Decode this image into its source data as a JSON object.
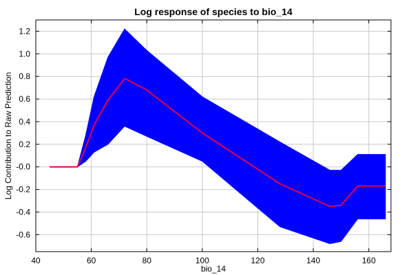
{
  "chart_data": {
    "type": "area",
    "title": "Log response of species to bio_14",
    "xlabel": "bio_14",
    "ylabel": "Log Contribution to Raw Prediction",
    "xlim": [
      40,
      168
    ],
    "ylim": [
      -0.75,
      1.3
    ],
    "xticks": [
      40,
      60,
      80,
      100,
      120,
      140,
      160
    ],
    "yticks": [
      -0.6,
      -0.4,
      -0.2,
      0.0,
      0.2,
      0.4,
      0.6,
      0.8,
      1.0,
      1.2
    ],
    "ytick_labels": [
      "-0.6",
      "-0.4",
      "-0.2",
      "-0.0",
      "0.2",
      "0.4",
      "0.6",
      "0.8",
      "1.0",
      "1.2"
    ],
    "grid": true,
    "band": {
      "name": "",
      "color": "#0000ff",
      "x": [
        45,
        55,
        58,
        61,
        66,
        72,
        80,
        100,
        128,
        146,
        150,
        156,
        166
      ],
      "upper": [
        0.0,
        0.0,
        0.28,
        0.62,
        0.97,
        1.22,
        1.03,
        0.62,
        0.22,
        -0.03,
        -0.03,
        0.11,
        0.11
      ],
      "lower": [
        0.0,
        0.0,
        0.05,
        0.13,
        0.2,
        0.36,
        0.27,
        0.05,
        -0.53,
        -0.68,
        -0.66,
        -0.46,
        -0.46
      ]
    },
    "series": [
      {
        "name": "",
        "color": "#e0004d",
        "x": [
          45,
          55,
          58,
          61,
          66,
          72,
          73,
          80,
          100,
          128,
          146,
          150,
          156,
          166
        ],
        "y": [
          0.0,
          0.0,
          0.17,
          0.37,
          0.59,
          0.78,
          0.77,
          0.68,
          0.3,
          -0.15,
          -0.35,
          -0.34,
          -0.17,
          -0.17
        ]
      }
    ]
  }
}
